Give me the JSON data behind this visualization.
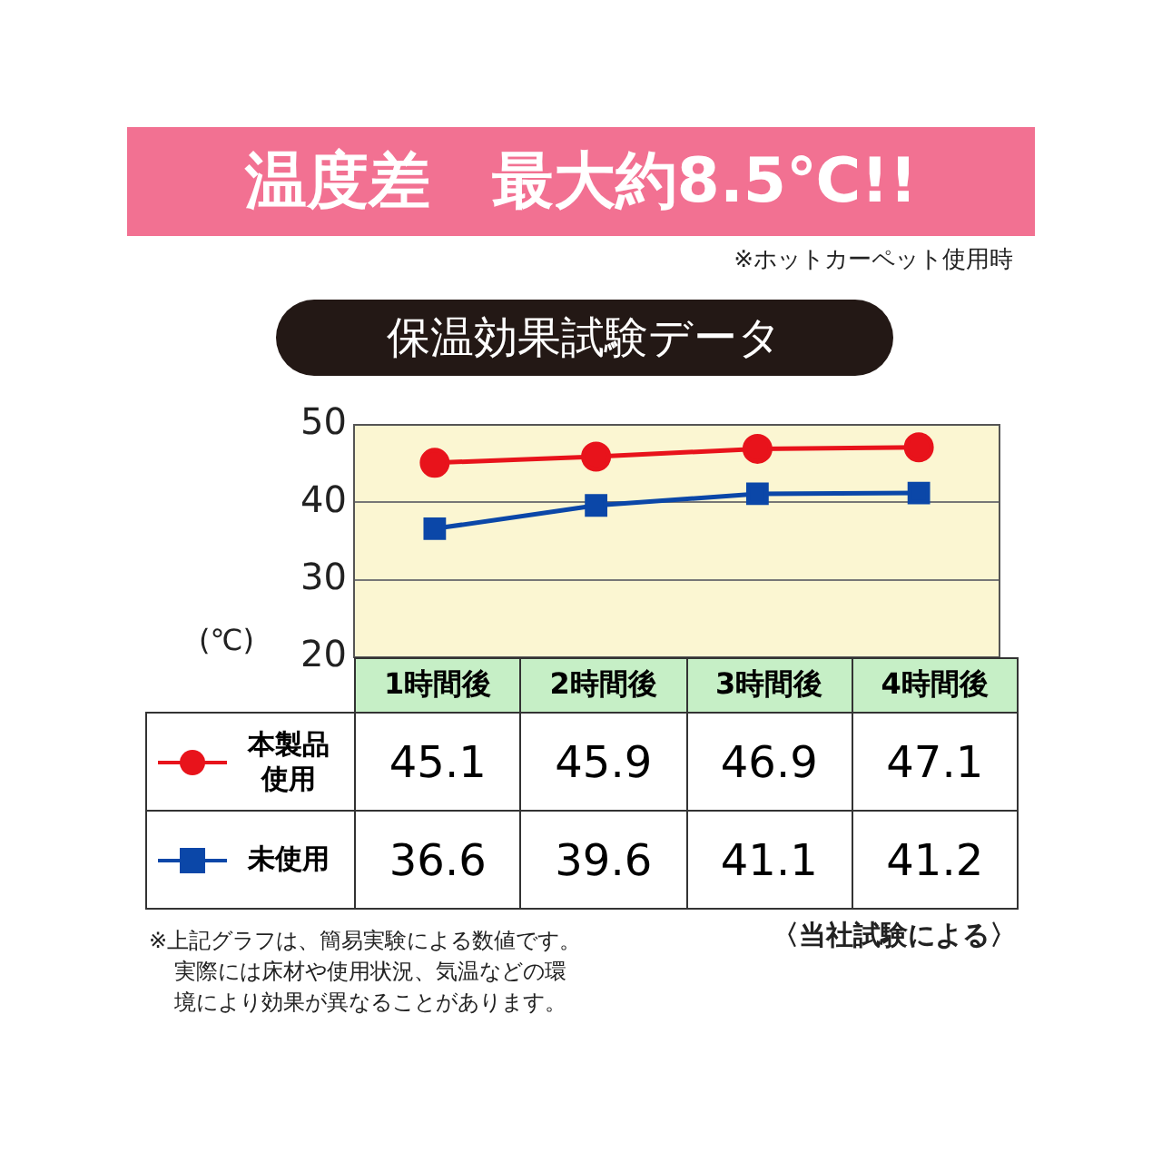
{
  "chart_data": {
    "type": "line",
    "title": "温度差　最大約8.5℃!!",
    "subtitle": "※ホットカーペット使用時",
    "annotations": [
      "保温効果試験データ",
      "※上記グラフは、簡易実験による数値です。実際には床材や使用状況、気温などの環境により効果が異なることがあります。",
      "〈当社試験による〉"
    ],
    "ylabel": "(℃)",
    "categories": [
      "1時間後",
      "2時間後",
      "3時間後",
      "4時間後"
    ],
    "series": [
      {
        "name": "本製品使用",
        "color": "#e8131b",
        "marker": "circle",
        "values": [
          45.1,
          45.9,
          46.9,
          47.1
        ]
      },
      {
        "name": "未使用",
        "color": "#0b47a8",
        "marker": "square",
        "values": [
          36.6,
          39.6,
          41.1,
          41.2
        ]
      }
    ],
    "ylim": [
      20,
      50
    ],
    "yticks": [
      20,
      30,
      40,
      50
    ],
    "grid": "y",
    "legend": "bottom left",
    "data_labels": true
  }
}
